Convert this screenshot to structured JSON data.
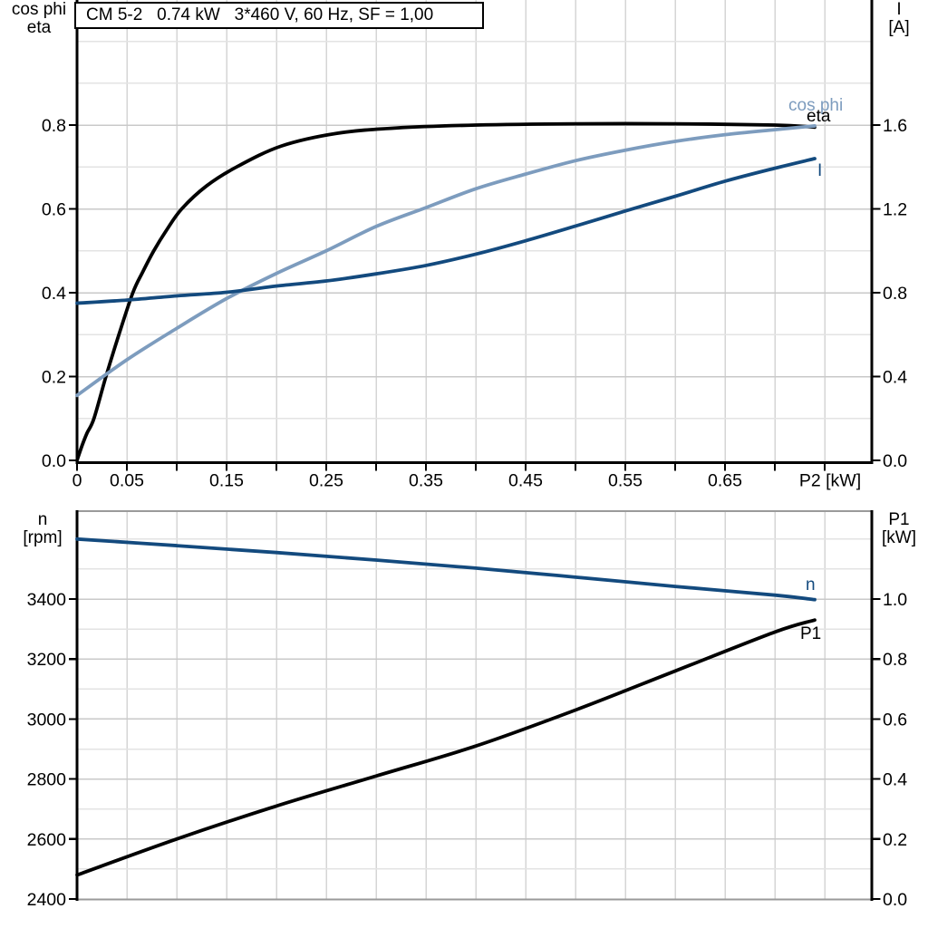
{
  "title": "CM 5-2   0.74 kW   3*460 V, 60 Hz, SF = 1,00",
  "colors": {
    "black": "#000000",
    "dark_blue": "#134a7e",
    "light_blue": "#7d9cbe",
    "grid_vertical": "#d5d5d5",
    "grid_minor": "#e3e3e3",
    "grid_major": "#c9c9c9",
    "frame_gray": "#9a9a9a"
  },
  "labels": {
    "top_left_axis_line1": "cos phi",
    "top_left_axis_line2": "eta",
    "top_right_axis_line1": "I",
    "top_right_axis_line2": "[A]",
    "bottom_left_axis_line1": "n",
    "bottom_left_axis_line2": "[rpm]",
    "bottom_right_axis_line1": "P1",
    "bottom_right_axis_line2": "[kW]",
    "x_axis_label": "P2 [kW]",
    "curve_cos_phi": "cos phi",
    "curve_eta": "eta",
    "curve_current": "I",
    "curve_speed": "n",
    "curve_power_in": "P1"
  },
  "chart_data": [
    {
      "type": "line",
      "xlabel": "P2 [kW]",
      "ylabel_left": "cos phi / eta",
      "ylabel_right": "I [A]",
      "xlim": [
        0,
        0.8
      ],
      "ylim_left": [
        0,
        1.08
      ],
      "ylim_right": [
        0,
        2.16
      ],
      "grid": true,
      "x_axis": {
        "ticks": [
          {
            "v": 0,
            "t": "0"
          },
          {
            "v": 0.05,
            "t": "0.05"
          },
          {
            "v": 0.15,
            "t": "0.15"
          },
          {
            "v": 0.25,
            "t": "0.25"
          },
          {
            "v": 0.35,
            "t": "0.35"
          },
          {
            "v": 0.45,
            "t": "0.45"
          },
          {
            "v": 0.55,
            "t": "0.55"
          },
          {
            "v": 0.65,
            "t": "0.65"
          }
        ]
      },
      "y_axis_left": {
        "ticks": [
          {
            "v": 0.0,
            "t": "0.0"
          },
          {
            "v": 0.2,
            "t": "0.2"
          },
          {
            "v": 0.4,
            "t": "0.4"
          },
          {
            "v": 0.6,
            "t": "0.6"
          },
          {
            "v": 0.8,
            "t": "0.8"
          }
        ]
      },
      "y_axis_right": {
        "ticks": [
          {
            "v": 0.0,
            "t": "0.0"
          },
          {
            "v": 0.4,
            "t": "0.4"
          },
          {
            "v": 0.8,
            "t": "0.8"
          },
          {
            "v": 1.2,
            "t": "1.2"
          },
          {
            "v": 1.6,
            "t": "1.6"
          }
        ]
      },
      "series": [
        {
          "name": "eta",
          "axis": "left",
          "color": "#000000",
          "points": [
            [
              0,
              0
            ],
            [
              0.005,
              0.035
            ],
            [
              0.01,
              0.065
            ],
            [
              0.017,
              0.1
            ],
            [
              0.029,
              0.2
            ],
            [
              0.042,
              0.3
            ],
            [
              0.056,
              0.4
            ],
            [
              0.066,
              0.45
            ],
            [
              0.077,
              0.5
            ],
            [
              0.09,
              0.55
            ],
            [
              0.105,
              0.6
            ],
            [
              0.13,
              0.655
            ],
            [
              0.16,
              0.7
            ],
            [
              0.205,
              0.75
            ],
            [
              0.26,
              0.78
            ],
            [
              0.32,
              0.793
            ],
            [
              0.4,
              0.8
            ],
            [
              0.5,
              0.803
            ],
            [
              0.6,
              0.803
            ],
            [
              0.7,
              0.8
            ],
            [
              0.74,
              0.795
            ]
          ]
        },
        {
          "name": "cos phi",
          "axis": "left",
          "color": "#7d9cbe",
          "points": [
            [
              0,
              0.155
            ],
            [
              0.05,
              0.24
            ],
            [
              0.1,
              0.315
            ],
            [
              0.15,
              0.386
            ],
            [
              0.2,
              0.446
            ],
            [
              0.25,
              0.5
            ],
            [
              0.3,
              0.558
            ],
            [
              0.35,
              0.603
            ],
            [
              0.4,
              0.648
            ],
            [
              0.45,
              0.683
            ],
            [
              0.5,
              0.715
            ],
            [
              0.55,
              0.74
            ],
            [
              0.6,
              0.761
            ],
            [
              0.65,
              0.777
            ],
            [
              0.7,
              0.789
            ],
            [
              0.74,
              0.798
            ]
          ]
        },
        {
          "name": "I",
          "axis": "right",
          "color": "#134a7e",
          "points": [
            [
              0,
              0.75
            ],
            [
              0.05,
              0.765
            ],
            [
              0.1,
              0.785
            ],
            [
              0.15,
              0.802
            ],
            [
              0.2,
              0.832
            ],
            [
              0.25,
              0.856
            ],
            [
              0.3,
              0.89
            ],
            [
              0.35,
              0.93
            ],
            [
              0.4,
              0.984
            ],
            [
              0.45,
              1.048
            ],
            [
              0.5,
              1.118
            ],
            [
              0.55,
              1.19
            ],
            [
              0.6,
              1.26
            ],
            [
              0.65,
              1.332
            ],
            [
              0.7,
              1.394
            ],
            [
              0.74,
              1.44
            ]
          ]
        }
      ]
    },
    {
      "type": "line",
      "xlabel": "",
      "ylabel_left": "n [rpm]",
      "ylabel_right": "P1 [kW]",
      "xlim": [
        0,
        0.8
      ],
      "ylim_left": [
        2400,
        3696
      ],
      "ylim_right": [
        0,
        1.296
      ],
      "grid": true,
      "y_axis_left": {
        "ticks": [
          {
            "v": 2400,
            "t": "2400"
          },
          {
            "v": 2600,
            "t": "2600"
          },
          {
            "v": 2800,
            "t": "2800"
          },
          {
            "v": 3000,
            "t": "3000"
          },
          {
            "v": 3200,
            "t": "3200"
          },
          {
            "v": 3400,
            "t": "3400"
          }
        ]
      },
      "y_axis_right": {
        "ticks": [
          {
            "v": 0.0,
            "t": "0.0"
          },
          {
            "v": 0.2,
            "t": "0.2"
          },
          {
            "v": 0.4,
            "t": "0.4"
          },
          {
            "v": 0.6,
            "t": "0.6"
          },
          {
            "v": 0.8,
            "t": "0.8"
          },
          {
            "v": 1.0,
            "t": "1.0"
          }
        ]
      },
      "series": [
        {
          "name": "n",
          "axis": "left",
          "color": "#134a7e",
          "points": [
            [
              0,
              3600
            ],
            [
              0.1,
              3578
            ],
            [
              0.2,
              3555
            ],
            [
              0.3,
              3530
            ],
            [
              0.4,
              3503
            ],
            [
              0.5,
              3473
            ],
            [
              0.6,
              3442
            ],
            [
              0.7,
              3413
            ],
            [
              0.74,
              3398
            ]
          ]
        },
        {
          "name": "P1",
          "axis": "right",
          "color": "#000000",
          "points": [
            [
              0,
              0.08
            ],
            [
              0.1,
              0.2
            ],
            [
              0.2,
              0.31
            ],
            [
              0.3,
              0.41
            ],
            [
              0.4,
              0.51
            ],
            [
              0.5,
              0.63
            ],
            [
              0.6,
              0.76
            ],
            [
              0.7,
              0.89
            ],
            [
              0.74,
              0.93
            ]
          ]
        }
      ]
    }
  ]
}
